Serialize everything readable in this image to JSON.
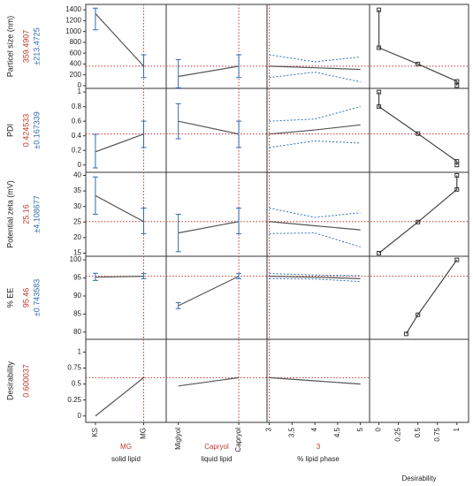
{
  "chart_data": {
    "type": "profiler",
    "factors": [
      {
        "name": "solid lipid",
        "current": "MG",
        "categories": [
          "KS",
          "MG"
        ]
      },
      {
        "name": "liquid lipid",
        "current": "Capryol",
        "categories": [
          "Miglyol",
          "Capryol"
        ]
      },
      {
        "name": "% lipid phase",
        "current": 3,
        "xlim": [
          2.95,
          5.2
        ],
        "xticks": [
          3,
          3.5,
          4,
          4.5,
          5
        ]
      }
    ],
    "desirability_axis": {
      "name": "Desirability",
      "xlim": [
        -0.12,
        1.15
      ],
      "xticks": [
        0,
        0.25,
        0.5,
        0.75,
        1
      ]
    },
    "responses": [
      {
        "name": "Particel size (nm)",
        "value": 359.4907,
        "error": {
          "value": 213.4725,
          "label": "±213.4725"
        },
        "ylim": [
          -50,
          1500
        ],
        "yticks": [
          0,
          200,
          400,
          600,
          800,
          1000,
          1200,
          1400
        ],
        "cells": [
          {
            "values": [
              1330,
              359.4907
            ],
            "lower": [
              1030,
              150
            ],
            "upper": [
              1430,
              570
            ]
          },
          {
            "values": [
              170,
              359.4907
            ],
            "lower": [
              -40,
              150
            ],
            "upper": [
              480,
              570
            ]
          },
          {
            "x": [
              3,
              4,
              5
            ],
            "values": [
              359.4907,
              330,
              300
            ],
            "lower": [
              150,
              250,
              70
            ],
            "upper": [
              570,
              440,
              530
            ]
          }
        ],
        "desirability": {
          "x": [
            0,
            0,
            0.5,
            1,
            1
          ],
          "y": [
            1400,
            700,
            400,
            80,
            0
          ]
        }
      },
      {
        "name": "PDI",
        "value": 0.424533,
        "error": {
          "value": 0.167339,
          "label": "±0.167339"
        },
        "ylim": [
          -0.1,
          1.05
        ],
        "yticks": [
          0,
          0.2,
          0.4,
          0.6,
          0.8,
          1
        ],
        "cells": [
          {
            "values": [
              0.18,
              0.424533
            ],
            "lower": [
              -0.04,
              0.24
            ],
            "upper": [
              0.42,
              0.6
            ]
          },
          {
            "values": [
              0.6,
              0.424533
            ],
            "lower": [
              0.36,
              0.24
            ],
            "upper": [
              0.84,
              0.6
            ]
          },
          {
            "x": [
              3,
              4,
              5
            ],
            "values": [
              0.424533,
              0.48,
              0.55
            ],
            "lower": [
              0.24,
              0.33,
              0.3
            ],
            "upper": [
              0.6,
              0.63,
              0.8
            ]
          }
        ],
        "desirability": {
          "x": [
            0,
            0,
            0.5,
            1,
            1
          ],
          "y": [
            1,
            0.8,
            0.43,
            0.05,
            0
          ]
        }
      },
      {
        "name": "Potential zeta (mV)",
        "value": 25.16,
        "error": {
          "value": 4.108677,
          "label": "±4.108677"
        },
        "ylim": [
          14,
          41
        ],
        "yticks": [
          15,
          20,
          25,
          30,
          35,
          40
        ],
        "cells": [
          {
            "values": [
              33.5,
              25.16
            ],
            "lower": [
              27.5,
              21.3
            ],
            "upper": [
              39.5,
              29.5
            ]
          },
          {
            "values": [
              21.5,
              25.16
            ],
            "lower": [
              15.5,
              21.3
            ],
            "upper": [
              27.5,
              29.5
            ]
          },
          {
            "x": [
              3,
              4,
              5
            ],
            "values": [
              25.16,
              23.8,
              22.5
            ],
            "lower": [
              21.3,
              21.5,
              17
            ],
            "upper": [
              29.5,
              26.5,
              28
            ]
          }
        ],
        "desirability": {
          "x": [
            0,
            0.5,
            1,
            1
          ],
          "y": [
            15,
            25,
            35.5,
            40
          ]
        }
      },
      {
        "name": "% EE",
        "value": 95.46,
        "error": {
          "value": 0.743583,
          "label": "±0.743583"
        },
        "ylim": [
          78,
          101
        ],
        "yticks": [
          80,
          85,
          90,
          95,
          100
        ],
        "cells": [
          {
            "values": [
              95.2,
              95.46
            ],
            "lower": [
              94.3,
              94.8
            ],
            "upper": [
              96.3,
              96.2
            ]
          },
          {
            "values": [
              87.3,
              95.46
            ],
            "lower": [
              86.5,
              94.8
            ],
            "upper": [
              88.2,
              96.2
            ]
          },
          {
            "x": [
              3,
              4,
              5
            ],
            "values": [
              95.46,
              95.2,
              94.8
            ],
            "lower": [
              94.8,
              94.7,
              94
            ],
            "upper": [
              96.2,
              95.8,
              95.6
            ]
          }
        ],
        "desirability": {
          "x": [
            0.35,
            0.5,
            1
          ],
          "y": [
            79.5,
            84.8,
            100
          ]
        }
      },
      {
        "name": "Desirability",
        "value": 0.600037,
        "ylim": [
          -0.1,
          1.2
        ],
        "yticks": [
          0,
          0.25,
          0.5,
          0.75,
          1
        ],
        "cells": [
          {
            "values": [
              0,
              0.600037
            ]
          },
          {
            "values": [
              0.47,
              0.600037
            ]
          },
          {
            "x": [
              3,
              4,
              5
            ],
            "values": [
              0.600037,
              0.55,
              0.5
            ]
          }
        ]
      }
    ]
  }
}
